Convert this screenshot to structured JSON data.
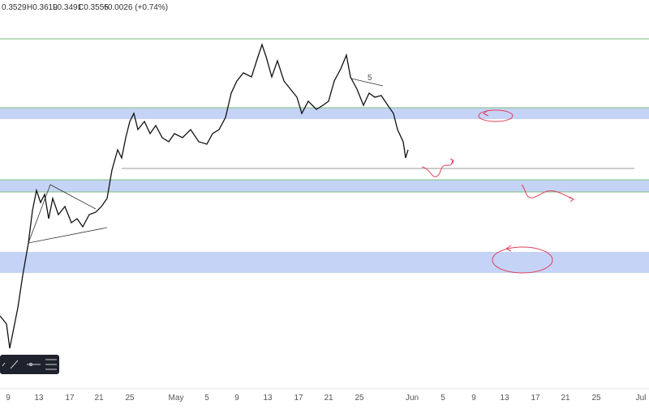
{
  "header": {
    "items": [
      "0.3529",
      "H0.3619",
      "L0.3491",
      "C0.3555",
      "+0.0026 (+0.74%)"
    ]
  },
  "annotation": "5",
  "time_axis": {
    "labels": [
      "9",
      "13",
      "17",
      "21",
      "25",
      "May",
      "5",
      "9",
      "13",
      "17",
      "21",
      "25",
      "Jun",
      "5",
      "9",
      "13",
      "17",
      "21",
      "25",
      "Jul"
    ]
  }
}
